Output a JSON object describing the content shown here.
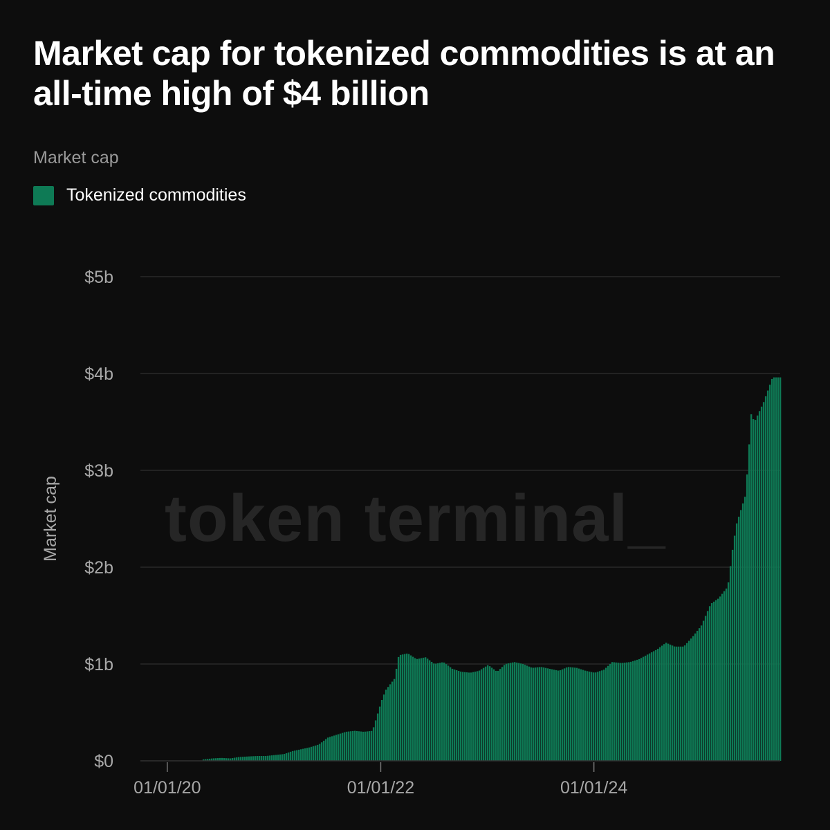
{
  "title": "Market cap for tokenized commodities is at an all-time high of $4 billion",
  "subtitle": "Market cap",
  "legend": {
    "label": "Tokenized commodities",
    "color": "#0e7a55"
  },
  "watermark": "token terminal_",
  "colors": {
    "background": "#0d0d0d",
    "bar": "#0e7a55",
    "bar_edge": "#16a673",
    "grid": "#2a2a2a",
    "tick_text": "#a8a8a8"
  },
  "chart_data": {
    "type": "bar",
    "title": "Market cap for tokenized commodities is at an all-time high of $4 billion",
    "ylabel": "Market cap",
    "series": [
      {
        "name": "Tokenized commodities",
        "points": [
          [
            "2020-05-01",
            0.015
          ],
          [
            "2020-06-01",
            0.025
          ],
          [
            "2020-07-01",
            0.03
          ],
          [
            "2020-08-01",
            0.025
          ],
          [
            "2020-09-01",
            0.04
          ],
          [
            "2020-10-01",
            0.045
          ],
          [
            "2020-11-01",
            0.05
          ],
          [
            "2020-12-01",
            0.05
          ],
          [
            "2021-01-01",
            0.06
          ],
          [
            "2021-02-01",
            0.07
          ],
          [
            "2021-03-01",
            0.1
          ],
          [
            "2021-04-01",
            0.12
          ],
          [
            "2021-05-01",
            0.14
          ],
          [
            "2021-06-01",
            0.17
          ],
          [
            "2021-07-01",
            0.24
          ],
          [
            "2021-08-01",
            0.27
          ],
          [
            "2021-09-01",
            0.3
          ],
          [
            "2021-10-01",
            0.31
          ],
          [
            "2021-11-01",
            0.3
          ],
          [
            "2021-12-01",
            0.31
          ],
          [
            "2021-12-20",
            0.5
          ],
          [
            "2022-01-01",
            0.62
          ],
          [
            "2022-01-15",
            0.73
          ],
          [
            "2022-02-15",
            0.85
          ],
          [
            "2022-03-01",
            1.09
          ],
          [
            "2022-04-01",
            1.11
          ],
          [
            "2022-05-01",
            1.05
          ],
          [
            "2022-06-01",
            1.07
          ],
          [
            "2022-07-01",
            1.0
          ],
          [
            "2022-08-01",
            1.02
          ],
          [
            "2022-09-01",
            0.95
          ],
          [
            "2022-10-01",
            0.92
          ],
          [
            "2022-11-01",
            0.91
          ],
          [
            "2022-12-01",
            0.93
          ],
          [
            "2023-01-01",
            0.99
          ],
          [
            "2023-02-01",
            0.92
          ],
          [
            "2023-03-01",
            1.0
          ],
          [
            "2023-04-01",
            1.02
          ],
          [
            "2023-05-01",
            1.0
          ],
          [
            "2023-06-01",
            0.96
          ],
          [
            "2023-07-01",
            0.97
          ],
          [
            "2023-08-01",
            0.95
          ],
          [
            "2023-09-01",
            0.93
          ],
          [
            "2023-10-01",
            0.97
          ],
          [
            "2023-11-01",
            0.96
          ],
          [
            "2023-12-01",
            0.93
          ],
          [
            "2024-01-01",
            0.91
          ],
          [
            "2024-02-01",
            0.94
          ],
          [
            "2024-03-01",
            1.02
          ],
          [
            "2024-04-01",
            1.01
          ],
          [
            "2024-05-01",
            1.02
          ],
          [
            "2024-06-01",
            1.05
          ],
          [
            "2024-07-01",
            1.1
          ],
          [
            "2024-08-01",
            1.15
          ],
          [
            "2024-09-01",
            1.22
          ],
          [
            "2024-10-01",
            1.18
          ],
          [
            "2024-11-01",
            1.18
          ],
          [
            "2024-12-01",
            1.28
          ],
          [
            "2025-01-01",
            1.4
          ],
          [
            "2025-02-01",
            1.62
          ],
          [
            "2025-03-01",
            1.68
          ],
          [
            "2025-04-01",
            1.8
          ],
          [
            "2025-04-20",
            2.25
          ],
          [
            "2025-05-01",
            2.45
          ],
          [
            "2025-06-01",
            2.75
          ],
          [
            "2025-06-20",
            3.58
          ],
          [
            "2025-07-01",
            3.5
          ],
          [
            "2025-08-01",
            3.7
          ],
          [
            "2025-09-01",
            3.96
          ]
        ]
      }
    ],
    "x_axis": {
      "type": "date",
      "range": [
        "2019-10-01",
        "2025-09-30"
      ],
      "tick_labels": [
        "01/01/20",
        "01/01/22",
        "01/01/24"
      ],
      "tick_dates": [
        "2020-01-01",
        "2022-01-01",
        "2024-01-01"
      ]
    },
    "y_axis": {
      "range": [
        0,
        5
      ],
      "unit": "billion USD",
      "tick_values": [
        0,
        1,
        2,
        3,
        4,
        5
      ],
      "tick_labels": [
        "$0",
        "$1b",
        "$2b",
        "$3b",
        "$4b",
        "$5b"
      ]
    },
    "grid": true,
    "legend_position": "top-left"
  }
}
